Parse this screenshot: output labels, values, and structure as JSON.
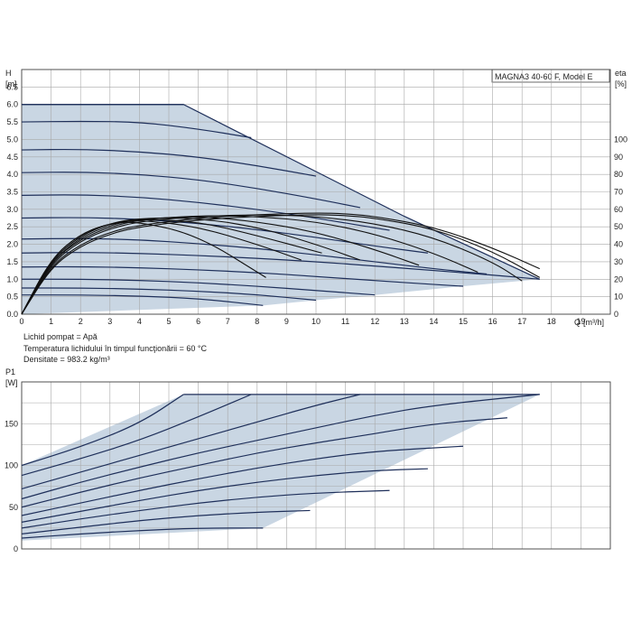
{
  "chart_data": [
    {
      "type": "line",
      "name": "head",
      "title": "MAGNA3 40-60 F, Model E",
      "ylabel": "H",
      "yunit": "[m]",
      "y2label": "eta",
      "y2unit": "[%]",
      "xlabel": "Q",
      "xunit": "[m³/h]",
      "xlim": [
        0,
        20
      ],
      "ylim": [
        0,
        7
      ],
      "y2lim": [
        0,
        140
      ],
      "grid": true,
      "xticks": [
        "0",
        "1",
        "2",
        "3",
        "4",
        "5",
        "6",
        "7",
        "8",
        "9",
        "10",
        "11",
        "12",
        "13",
        "14",
        "15",
        "16",
        "17",
        "18",
        "19"
      ],
      "yticks": [
        "0.0",
        "0.5",
        "1.0",
        "1.5",
        "2.0",
        "2.5",
        "3.0",
        "3.5",
        "4.0",
        "4.5",
        "5.0",
        "5.5",
        "6.0",
        "6.5"
      ],
      "y2ticks": [
        "0",
        "10",
        "20",
        "30",
        "40",
        "50",
        "60",
        "70",
        "80",
        "90",
        "100"
      ],
      "envelope": {
        "x": [
          0,
          5.5,
          13.0,
          17.6,
          17.6,
          15.0,
          12.0,
          10.0,
          8.2,
          0
        ],
        "y": [
          6.0,
          6.0,
          2.8,
          1.0,
          1.0,
          0.8,
          0.55,
          0.4,
          0.25,
          0.0
        ]
      },
      "head_curves": [
        {
          "x": [
            0,
            2,
            4,
            5.5
          ],
          "y": [
            6.0,
            6.0,
            6.0,
            6.0
          ]
        },
        {
          "x": [
            0,
            2,
            4,
            6,
            7.8
          ],
          "y": [
            5.5,
            5.52,
            5.5,
            5.3,
            5.05
          ]
        },
        {
          "x": [
            0,
            2,
            4,
            6,
            8,
            10
          ],
          "y": [
            4.7,
            4.72,
            4.65,
            4.5,
            4.25,
            3.95
          ]
        },
        {
          "x": [
            0,
            2,
            4,
            6,
            8,
            10,
            11.5
          ],
          "y": [
            4.05,
            4.07,
            4.0,
            3.85,
            3.6,
            3.3,
            3.05
          ]
        },
        {
          "x": [
            0,
            2,
            4,
            6,
            8,
            10,
            12.5
          ],
          "y": [
            3.4,
            3.42,
            3.35,
            3.2,
            3.0,
            2.75,
            2.4
          ]
        },
        {
          "x": [
            0,
            2,
            4,
            6,
            8,
            10,
            12,
            13.8
          ],
          "y": [
            2.75,
            2.77,
            2.72,
            2.6,
            2.42,
            2.2,
            1.95,
            1.75
          ]
        },
        {
          "x": [
            0,
            2,
            4,
            6,
            8,
            10,
            12,
            14,
            15.8
          ],
          "y": [
            2.15,
            2.17,
            2.13,
            2.02,
            1.88,
            1.7,
            1.5,
            1.3,
            1.15
          ]
        },
        {
          "x": [
            0,
            2,
            4,
            6,
            8,
            10,
            12,
            14,
            16,
            17.6
          ],
          "y": [
            1.75,
            1.77,
            1.74,
            1.68,
            1.6,
            1.5,
            1.38,
            1.25,
            1.12,
            1.0
          ]
        },
        {
          "x": [
            0,
            2,
            4,
            6,
            8,
            10,
            12,
            14,
            15.0
          ],
          "y": [
            1.35,
            1.36,
            1.33,
            1.27,
            1.19,
            1.08,
            0.96,
            0.85,
            0.8
          ]
        },
        {
          "x": [
            0,
            2,
            4,
            6,
            8,
            10,
            12.0
          ],
          "y": [
            1.0,
            1.0,
            0.97,
            0.9,
            0.8,
            0.68,
            0.55
          ]
        },
        {
          "x": [
            0,
            2,
            4,
            6,
            8,
            10.0
          ],
          "y": [
            0.75,
            0.75,
            0.72,
            0.66,
            0.56,
            0.4
          ]
        },
        {
          "x": [
            0,
            2,
            4,
            6,
            8.2
          ],
          "y": [
            0.55,
            0.55,
            0.52,
            0.45,
            0.25
          ]
        }
      ],
      "eta_curves": [
        {
          "x": [
            0,
            1,
            2,
            3,
            4,
            6,
            8,
            10,
            11,
            12,
            14,
            16,
            17.6
          ],
          "y": [
            0,
            28,
            40,
            47,
            51,
            55,
            57,
            58,
            57.5,
            56,
            50,
            38,
            26
          ]
        },
        {
          "x": [
            0,
            1,
            2,
            3,
            4,
            6,
            8,
            10,
            11,
            12,
            14,
            16,
            17.6
          ],
          "y": [
            0,
            27,
            39,
            46,
            50,
            54,
            56,
            57,
            56.5,
            55,
            49,
            36,
            21
          ]
        },
        {
          "x": [
            0,
            1,
            2,
            3,
            4,
            6,
            8,
            10,
            12,
            14,
            16,
            17.0
          ],
          "y": [
            0,
            29,
            42,
            49,
            53,
            56,
            57,
            56,
            52,
            44,
            30,
            19
          ]
        },
        {
          "x": [
            0,
            1,
            2,
            3,
            4,
            6,
            8,
            10,
            12,
            14,
            15.5
          ],
          "y": [
            0,
            30,
            43,
            50,
            54,
            56.5,
            56,
            53,
            46,
            35,
            24
          ]
        },
        {
          "x": [
            0,
            1,
            2,
            3,
            4,
            6,
            8,
            10,
            12,
            13.5
          ],
          "y": [
            0,
            30,
            44,
            51,
            54.5,
            56,
            53,
            47,
            37,
            28
          ]
        },
        {
          "x": [
            0,
            1,
            2,
            3,
            4,
            6,
            8,
            10,
            11.5
          ],
          "y": [
            0,
            31,
            45,
            52,
            55,
            55,
            50,
            40,
            31
          ]
        },
        {
          "x": [
            0,
            1,
            2,
            3,
            4,
            6,
            8,
            10.2
          ],
          "y": [
            0,
            31,
            45,
            52,
            54.5,
            53,
            45,
            35
          ]
        },
        {
          "x": [
            0,
            1,
            2,
            3,
            4,
            6,
            8,
            9.5
          ],
          "y": [
            0,
            32,
            46,
            52,
            54,
            50,
            40,
            31
          ]
        },
        {
          "x": [
            0,
            1,
            2,
            3,
            4,
            6,
            8.3
          ],
          "y": [
            0,
            32,
            46,
            52,
            53,
            45,
            21
          ]
        }
      ]
    },
    {
      "type": "line",
      "name": "power",
      "ylabel": "P1",
      "yunit": "[W]",
      "xlim": [
        0,
        20
      ],
      "ylim": [
        0,
        200
      ],
      "grid": true,
      "yticks": [
        "0",
        "50",
        "100",
        "150"
      ],
      "envelope": {
        "x": [
          0,
          5.5,
          17.6,
          8.2,
          0
        ],
        "y": [
          100,
          185,
          185,
          25,
          10
        ]
      },
      "power_curves": [
        {
          "x": [
            0,
            2,
            4,
            5.5
          ],
          "y": [
            100,
            122,
            150,
            185
          ]
        },
        {
          "x": [
            0,
            2,
            4,
            6,
            7.8
          ],
          "y": [
            88,
            108,
            130,
            158,
            185
          ]
        },
        {
          "x": [
            0,
            2,
            4,
            6,
            8,
            10,
            11.5
          ],
          "y": [
            72,
            92,
            112,
            132,
            152,
            172,
            185
          ]
        },
        {
          "x": [
            0,
            2,
            4,
            6,
            8,
            10,
            12,
            14,
            17.6
          ],
          "y": [
            60,
            80,
            98,
            115,
            130,
            145,
            160,
            172,
            185
          ]
        },
        {
          "x": [
            0,
            2,
            4,
            6,
            8,
            10,
            12,
            14,
            16.5
          ],
          "y": [
            50,
            68,
            85,
            100,
            115,
            127,
            138,
            150,
            157
          ]
        },
        {
          "x": [
            0,
            2,
            4,
            6,
            8,
            10,
            12,
            15.0
          ],
          "y": [
            40,
            55,
            70,
            84,
            97,
            108,
            117,
            123
          ]
        },
        {
          "x": [
            0,
            2,
            4,
            6,
            8,
            10,
            12,
            13.8
          ],
          "y": [
            32,
            45,
            58,
            70,
            80,
            88,
            94,
            96
          ]
        },
        {
          "x": [
            0,
            2,
            4,
            6,
            8,
            10,
            12.5
          ],
          "y": [
            25,
            36,
            46,
            55,
            62,
            67,
            70
          ]
        },
        {
          "x": [
            0,
            2,
            4,
            6,
            8,
            9.8
          ],
          "y": [
            18,
            26,
            34,
            40,
            44,
            46
          ]
        },
        {
          "x": [
            0,
            2,
            4,
            6,
            8.2
          ],
          "y": [
            13,
            18,
            22,
            25,
            25
          ]
        }
      ]
    }
  ],
  "legend_lines": [
    "Lichid pompat = Apă",
    "Temperatura lichidului în timpul funcţionării = 60 °C",
    "Densitate = 983.2 kg/m³"
  ],
  "colors": {
    "fill": "#c9d6e3",
    "curve_head": "#1e2f5a",
    "curve_eta": "#111111",
    "grid": "#a8a8a8",
    "frame": "#444444"
  }
}
